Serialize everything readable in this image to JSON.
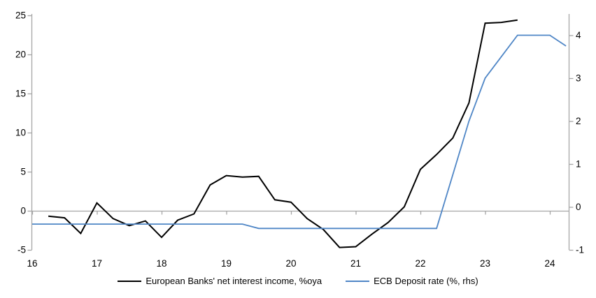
{
  "colors": {
    "background": "#ffffff",
    "axis": "#a6a6a6",
    "text": "#000000",
    "series_nii": "#000000",
    "series_ecb": "#4f86c6"
  },
  "chart_data": {
    "type": "line",
    "legend_position": "bottom",
    "grid": "off",
    "x_axis": {
      "ticks": [
        16,
        17,
        18,
        19,
        20,
        21,
        22,
        23,
        24
      ],
      "min": 16,
      "max": 24.3,
      "tick_style": "on zero line, labels at bottom"
    },
    "left_axis": {
      "min": -5,
      "max": 25,
      "ticks": [
        25,
        20,
        15,
        10,
        5,
        0,
        -5
      ]
    },
    "right_axis": {
      "min": -1,
      "max": 4.46,
      "ticks": [
        4,
        3,
        2,
        1,
        0,
        -1
      ]
    },
    "series": [
      {
        "name": "European Banks' net interest income, %oya",
        "axis": "left",
        "color": "#000000",
        "x_start": 16.25,
        "x_step": 0.25,
        "values": [
          -0.7,
          -0.9,
          -2.9,
          1.0,
          -1.0,
          -1.9,
          -1.3,
          -3.4,
          -1.2,
          -0.4,
          3.3,
          4.5,
          4.3,
          4.4,
          1.4,
          1.1,
          -1.0,
          -2.4,
          -4.7,
          -4.6,
          -3.0,
          -1.5,
          0.5,
          5.3,
          7.2,
          9.3,
          13.8,
          24.0,
          24.1,
          24.4
        ]
      },
      {
        "name": "ECB Deposit rate (%, rhs)",
        "axis": "right",
        "color": "#4f86c6",
        "x_start": 16.0,
        "x_step": 0.25,
        "values": [
          -0.4,
          -0.4,
          -0.4,
          -0.4,
          -0.4,
          -0.4,
          -0.4,
          -0.4,
          -0.4,
          -0.4,
          -0.4,
          -0.4,
          -0.4,
          -0.4,
          -0.5,
          -0.5,
          -0.5,
          -0.5,
          -0.5,
          -0.5,
          -0.5,
          -0.5,
          -0.5,
          -0.5,
          -0.5,
          -0.5,
          0.75,
          2.0,
          3.0,
          3.5,
          4.0,
          4.0,
          4.0,
          3.75
        ]
      }
    ]
  },
  "legend": {
    "item1": "European Banks' net interest income, %oya",
    "item2": "ECB Deposit rate (%, rhs)"
  }
}
